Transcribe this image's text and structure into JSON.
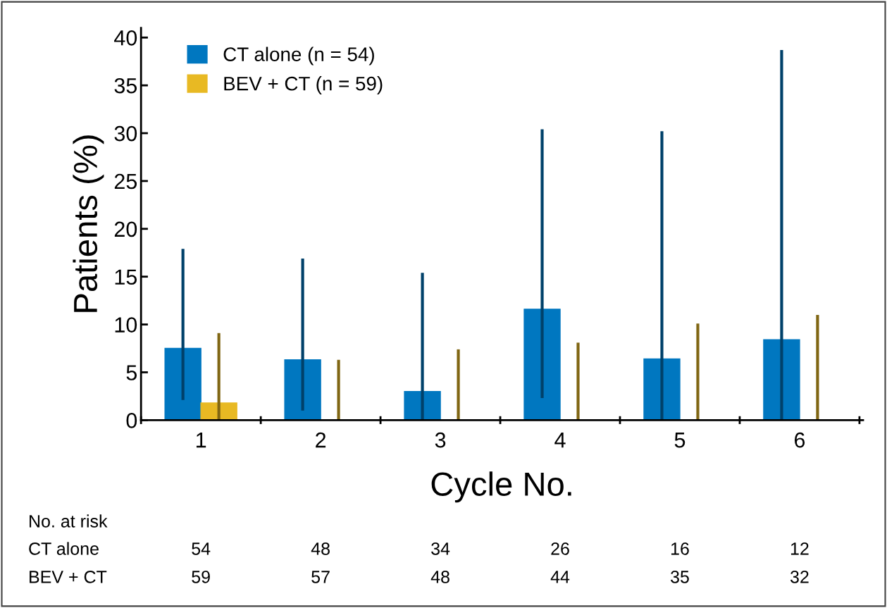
{
  "chart_data": {
    "type": "bar",
    "xlabel": "Cycle No.",
    "ylabel": "Patients (%)",
    "categories": [
      "1",
      "2",
      "3",
      "4",
      "5",
      "6"
    ],
    "series": [
      {
        "name": "CT alone (n = 54)",
        "color": "#0077c0",
        "values": [
          7.5,
          6.3,
          3.0,
          11.6,
          6.4,
          8.4
        ],
        "errors": [
          [
            2.1,
            17.9
          ],
          [
            1.0,
            16.9
          ],
          [
            0,
            15.4
          ],
          [
            2.3,
            30.4
          ],
          [
            0,
            30.2
          ],
          [
            0,
            38.7
          ]
        ]
      },
      {
        "name": "BEV + CT (n = 59)",
        "color": "#e8b923",
        "values": [
          1.8,
          0,
          0,
          0,
          0,
          0
        ],
        "errors": [
          [
            0,
            9.1
          ],
          [
            0,
            6.3
          ],
          [
            0,
            7.4
          ],
          [
            0,
            8.1
          ],
          [
            0,
            10.1
          ],
          [
            0,
            11.0
          ]
        ]
      }
    ],
    "ylim": [
      0,
      41
    ],
    "yticks": [
      0,
      5,
      10,
      15,
      20,
      25,
      30,
      35,
      40
    ],
    "grid": false,
    "legend": "top left",
    "annotations": [
      "No. at risk",
      "CT alone",
      "54",
      "48",
      "34",
      "26",
      "16",
      "12",
      "BEV + CT",
      "59",
      "57",
      "48",
      "44",
      "35",
      "32"
    ]
  }
}
